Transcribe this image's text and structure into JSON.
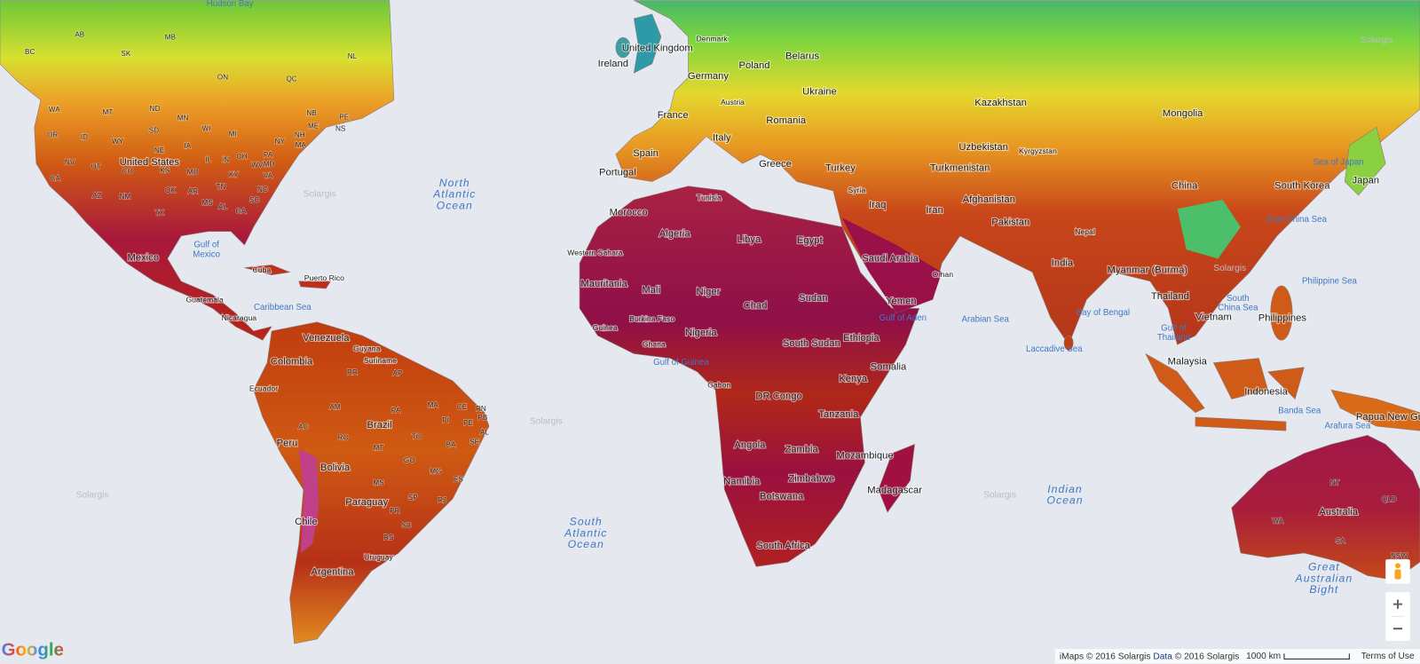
{
  "countries": [
    "United States",
    "Mexico",
    "Cuba",
    "Puerto Rico",
    "Guatemala",
    "Nicaragua",
    "Venezuela",
    "Guyana",
    "Suriname",
    "Colombia",
    "Ecuador",
    "Brazil",
    "Peru",
    "Bolivia",
    "Paraguay",
    "Chile",
    "Uruguay",
    "Argentina",
    "United Kingdom",
    "Ireland",
    "Denmark",
    "Poland",
    "Belarus",
    "Germany",
    "Ukraine",
    "Austria",
    "France",
    "Romania",
    "Italy",
    "Spain",
    "Portugal",
    "Greece",
    "Turkey",
    "Tunisia",
    "Morocco",
    "Algeria",
    "Libya",
    "Egypt",
    "Western Sahara",
    "Mauritania",
    "Mali",
    "Niger",
    "Chad",
    "Sudan",
    "Burkina Faso",
    "Guinea",
    "Ghana",
    "Nigeria",
    "South Sudan",
    "Ethiopia",
    "Somalia",
    "Gabon",
    "DR Congo",
    "Kenya",
    "Tanzania",
    "Angola",
    "Zambia",
    "Mozambique",
    "Zimbabwe",
    "Namibia",
    "Botswana",
    "Madagascar",
    "South Africa",
    "Syria",
    "Iraq",
    "Iran",
    "Saudi Arabia",
    "Oman",
    "Yemen",
    "Kazakhstan",
    "Uzbekistan",
    "Kyrgyzstan",
    "Turkmenistan",
    "Afghanistan",
    "Pakistan",
    "Nepal",
    "India",
    "Mongolia",
    "China",
    "South Korea",
    "Japan",
    "Myanmar (Burma)",
    "Thailand",
    "Vietnam",
    "Philippines",
    "Malaysia",
    "Indonesia",
    "Papua New Guinea",
    "Australia"
  ],
  "seas": [
    [
      "Hudson Bay"
    ],
    [
      "North",
      "Atlantic",
      "Ocean"
    ],
    [
      "Gulf of",
      "Mexico"
    ],
    [
      "Caribbean Sea"
    ],
    [
      "South",
      "Atlantic",
      "Ocean"
    ],
    [
      "Gulf of Guinea"
    ],
    [
      "Gulf of Aden"
    ],
    [
      "Arabian Sea"
    ],
    [
      "Laccadive Sea"
    ],
    [
      "Bay of Bengal"
    ],
    [
      "Indian",
      "Ocean"
    ],
    [
      "South",
      "China Sea"
    ],
    [
      "Gulf of",
      "Thailand"
    ],
    [
      "Philippine Sea"
    ],
    [
      "Sea of Japan"
    ],
    [
      "East China Sea"
    ],
    [
      "Banda Sea"
    ],
    [
      "Arafura Sea"
    ],
    [
      "Great",
      "Australian",
      "Bight"
    ]
  ],
  "regions": [
    "BC",
    "AB",
    "SK",
    "MB",
    "ON",
    "QC",
    "NL",
    "NB",
    "PE",
    "NS",
    "ME",
    "WA",
    "MT",
    "ND",
    "MN",
    "OR",
    "ID",
    "SD",
    "WI",
    "MI",
    "NY",
    "NH",
    "MA",
    "WY",
    "NE",
    "IA",
    "PA",
    "NV",
    "UT",
    "CO",
    "KS",
    "IL",
    "IN",
    "OH",
    "MD",
    "CA",
    "MO",
    "KY",
    "WV",
    "VA",
    "AZ",
    "NM",
    "OK",
    "AR",
    "TN",
    "NC",
    "SC",
    "MS",
    "AL",
    "GA",
    "TX",
    "AM",
    "PA",
    "AP",
    "RR",
    "MA",
    "CE",
    "RN",
    "PB",
    "PE",
    "AL",
    "PI",
    "SE",
    "BA",
    "TO",
    "AC",
    "RO",
    "MT",
    "GO",
    "MG",
    "ES",
    "MS",
    "SP",
    "RJ",
    "PR",
    "SC",
    "RS",
    "NT",
    "QLD",
    "WA",
    "SA",
    "NSW"
  ],
  "watermark": "Solargis",
  "footer": {
    "copyright": "iMaps © 2016 Solargis",
    "data_link": "Data",
    "data_copyright": "© 2016 Solargis",
    "scale": "1000 km",
    "terms": "Terms of Use"
  },
  "logo": "Google"
}
